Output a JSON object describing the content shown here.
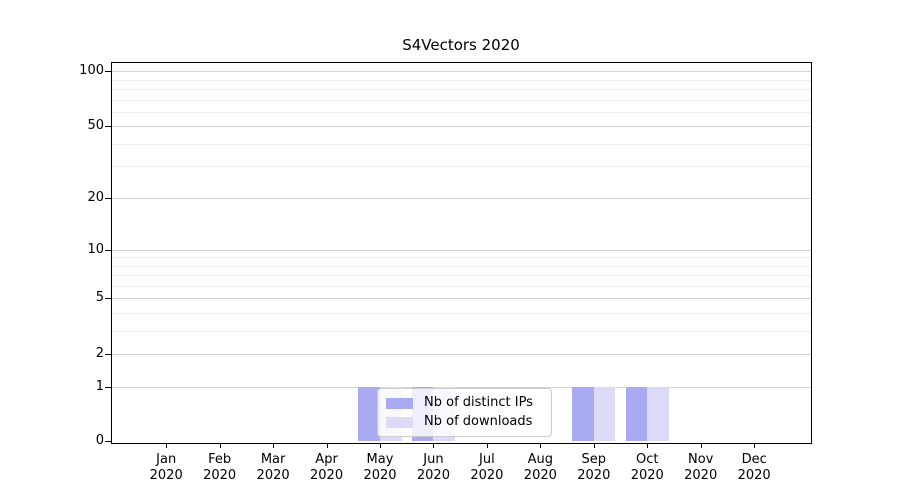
{
  "chart_data": {
    "type": "bar",
    "title": "S4Vectors 2020",
    "categories": [
      "Jan",
      "Feb",
      "Mar",
      "Apr",
      "May",
      "Jun",
      "Jul",
      "Aug",
      "Sep",
      "Oct",
      "Nov",
      "Dec"
    ],
    "year": "2020",
    "series": [
      {
        "name": "Nb of distinct IPs",
        "color": "#aaaaf2",
        "values": [
          0,
          0,
          0,
          0,
          1,
          1,
          0,
          0,
          1,
          1,
          0,
          0
        ]
      },
      {
        "name": "Nb of downloads",
        "color": "#dbdbf9",
        "values": [
          0,
          0,
          0,
          0,
          1,
          1,
          0,
          0,
          1,
          1,
          0,
          0
        ]
      }
    ],
    "y_axis": {
      "scale": "log1p",
      "ticks": [
        100,
        50,
        20,
        10,
        5,
        2,
        1,
        0
      ],
      "minor_gridlines": [
        3,
        4,
        6,
        7,
        8,
        9,
        30,
        40,
        60,
        70,
        80,
        90
      ],
      "max": 112
    },
    "grid": "horizontal",
    "legend_position": "inside-bottom-center",
    "colors": {
      "grid_major": "#d2d2d2",
      "grid_minor": "#ececec",
      "frame": "#000000",
      "text": "#000000"
    }
  }
}
